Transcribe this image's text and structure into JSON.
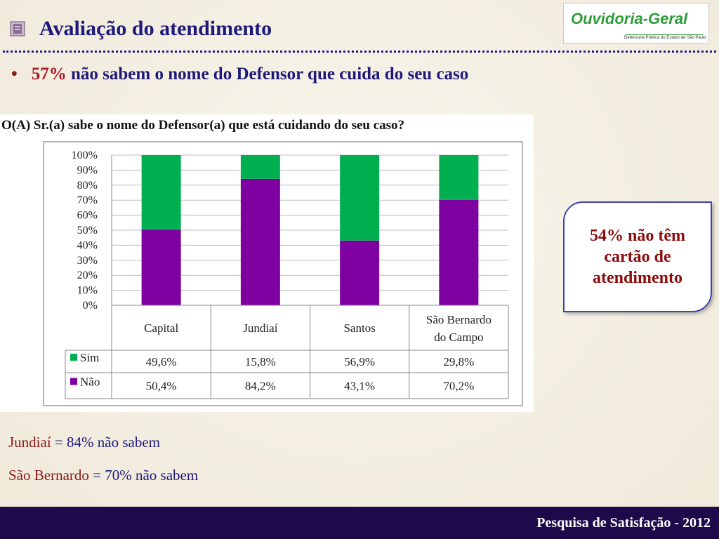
{
  "title": "Avaliação do atendimento",
  "logo": {
    "main": "Ouvidoria-Geral",
    "sub": "Defensoria Pública do Estado de São Paulo"
  },
  "bullet": {
    "pct": "57%",
    "rest": " não sabem o nome do Defensor que cuida do seu caso"
  },
  "callout": "54% não têm cartão de atendimento",
  "notes": [
    {
      "label": "Jundiaí",
      "value": " = 84% não sabem"
    },
    {
      "label": "São Bernardo",
      "value": " = 70% não sabem"
    }
  ],
  "footer": "Pesquisa de Satisfação - 2012",
  "chart_data": {
    "type": "bar",
    "stacked": true,
    "title": "O(A) Sr.(a) sabe o nome do Defensor(a) que está cuidando do seu caso?",
    "categories": [
      [
        "Capital"
      ],
      [
        "Jundiaí"
      ],
      [
        "Santos"
      ],
      [
        "São Bernardo",
        "do Campo"
      ]
    ],
    "series": [
      {
        "name": "Sim",
        "color": "#00b050",
        "values": [
          49.6,
          15.8,
          56.9,
          29.8
        ],
        "labels": [
          "49,6%",
          "15,8%",
          "56,9%",
          "29,8%"
        ]
      },
      {
        "name": "Não",
        "color": "#7f00a0",
        "values": [
          50.4,
          84.2,
          43.1,
          70.2
        ],
        "labels": [
          "50,4%",
          "84,2%",
          "43,1%",
          "70,2%"
        ]
      }
    ],
    "yticks": [
      "0%",
      "10%",
      "20%",
      "30%",
      "40%",
      "50%",
      "60%",
      "70%",
      "80%",
      "90%",
      "100%"
    ],
    "ylim": [
      0,
      100
    ],
    "grid": true,
    "data_table": true
  }
}
